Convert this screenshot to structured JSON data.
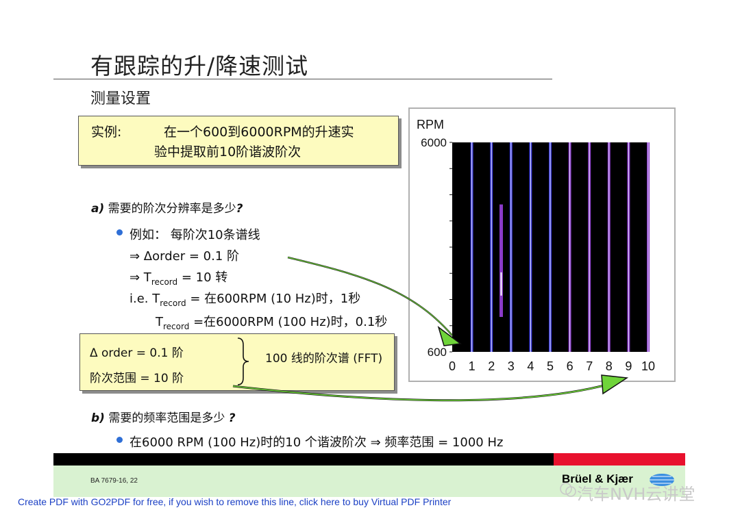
{
  "slide": {
    "title": "有跟踪的升/降速测试",
    "subtitle": "测量设置"
  },
  "example": {
    "label": "实例:",
    "line1": "在一个600到6000RPM的升速实",
    "line2": "验中提取前10阶谐波阶次"
  },
  "question_a": {
    "prefix": "a)",
    "text": " 需要的阶次分辨率是多少",
    "mark": "?"
  },
  "lines": {
    "bullet1": "例如：  每阶次10条谱线",
    "arrow1": "⇒  Δorder = 0.1 阶",
    "arrow2_pre": "⇒  T",
    "arrow2_sub": "record",
    "arrow2_post": " = 10 转",
    "ie_pre": "i.e.  T",
    "ie_sub": "record",
    "ie_post": " = 在600RPM (10 Hz)时，1秒",
    "t2_pre": "T",
    "t2_sub": "record",
    "t2_post": " =在6000RPM (100 Hz)时，0.1秒"
  },
  "summary": {
    "line1": "Δ order = 0.1 阶",
    "line2": "阶次范围 = 10 阶",
    "right": "100 线的阶次谱 (FFT)"
  },
  "question_b": {
    "prefix": "b)",
    "text": " 需要的频率范围是多少 ",
    "mark": "?"
  },
  "bullet2": "在6000 RPM (100 Hz)时的10 个谐波阶次 ⇒  频率范围 = 1000 Hz",
  "footer": {
    "code": "BA 7679-16, 22",
    "brand": "Brüel & Kjær",
    "watermark": "汽车NVH云讲堂",
    "go2pdf": "Create PDF with GO2PDF for free, if you wish to remove this line, click here to buy Virtual PDF Printer"
  },
  "chart_data": {
    "type": "line",
    "ylabel": "RPM",
    "yticks": [
      "6000",
      "600"
    ],
    "ylim": [
      600,
      6000
    ],
    "xlim": [
      0,
      10
    ],
    "xticks": [
      "0",
      "1",
      "2",
      "3",
      "4",
      "5",
      "6",
      "7",
      "8",
      "9",
      "10"
    ],
    "order_lines": [
      1,
      2,
      3,
      4,
      5,
      6,
      7,
      8,
      9,
      10
    ],
    "series": [
      {
        "values": [
          1,
          2,
          3,
          4,
          5,
          6,
          7,
          8,
          9,
          10
        ]
      }
    ],
    "highlight": {
      "x": 2.5,
      "rpm_range": [
        1500,
        4400
      ]
    },
    "grid": false,
    "background": "#000000",
    "line_colors": [
      "#3a3ad8",
      "#8a3ac8"
    ]
  }
}
